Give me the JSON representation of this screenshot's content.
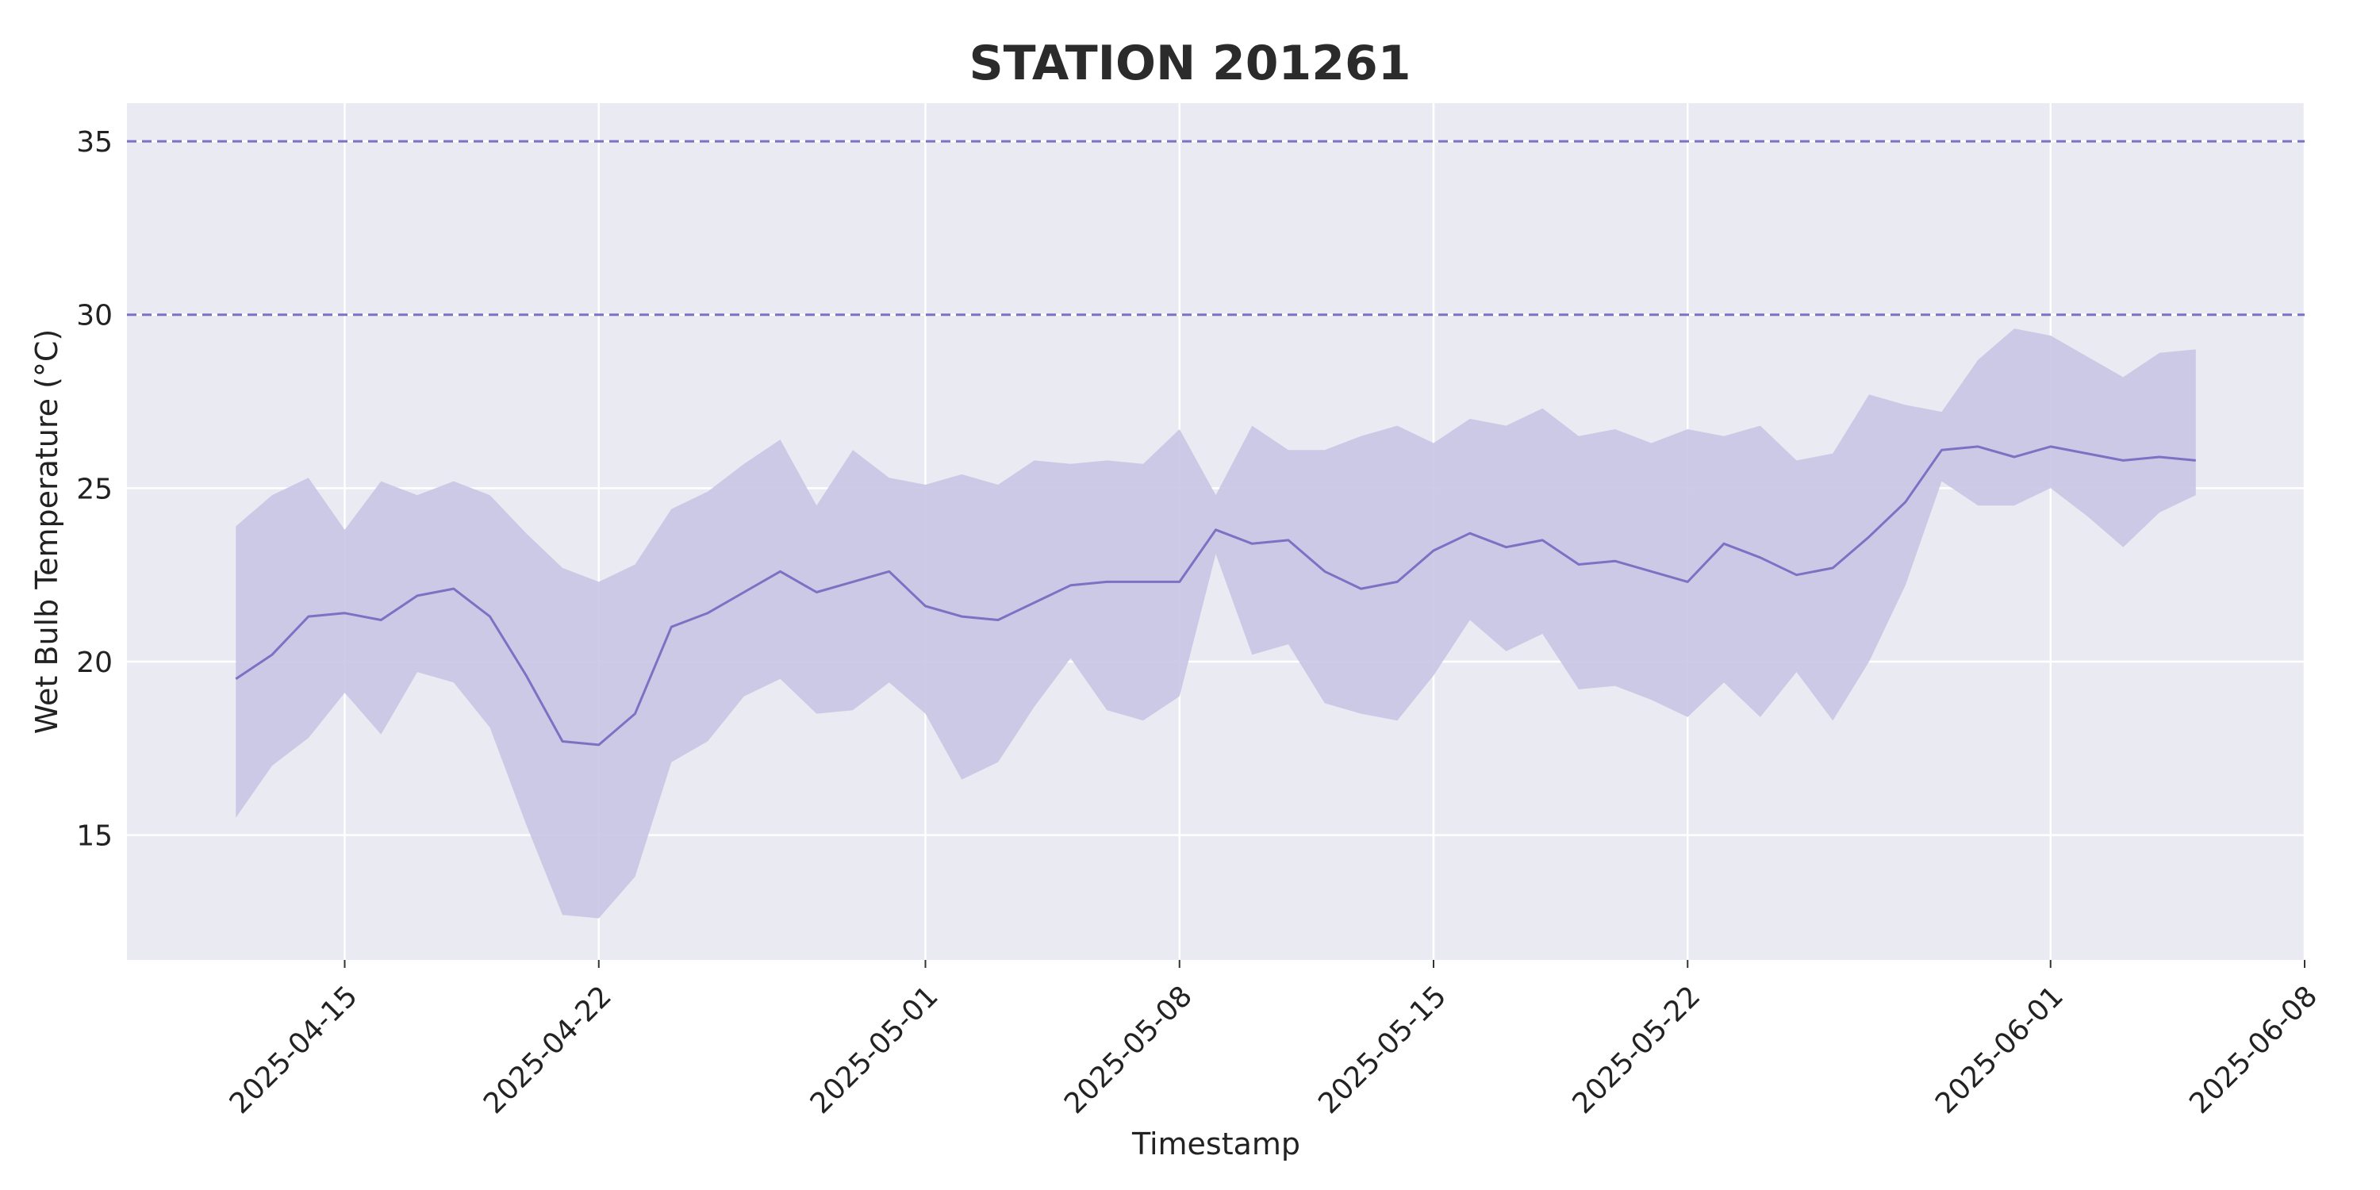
{
  "chart_data": {
    "type": "line",
    "title": "STATION 201261",
    "xlabel": "Timestamp",
    "ylabel": "Wet Bulb Temperature (°C)",
    "xlim": [
      "2025-04-09",
      "2025-06-08"
    ],
    "ylim": [
      11.4,
      36.1
    ],
    "x_ticks": [
      "2025-04-15",
      "2025-04-22",
      "2025-05-01",
      "2025-05-08",
      "2025-05-15",
      "2025-05-22",
      "2025-06-01",
      "2025-06-08"
    ],
    "y_ticks": [
      15,
      20,
      25,
      30,
      35
    ],
    "reference_lines": [
      {
        "y": 30,
        "style": "dashed"
      },
      {
        "y": 35,
        "style": "dashed"
      }
    ],
    "grid": true,
    "colors": {
      "background": "#eaeaf2",
      "grid": "#ffffff",
      "line": "#7b72c4",
      "band": "#c8c5e4",
      "reference": "#7b72c4"
    },
    "series": [
      {
        "x": [
          "2025-04-12",
          "2025-04-13",
          "2025-04-14",
          "2025-04-15",
          "2025-04-16",
          "2025-04-17",
          "2025-04-18",
          "2025-04-19",
          "2025-04-20",
          "2025-04-21",
          "2025-04-22",
          "2025-04-23",
          "2025-04-24",
          "2025-04-25",
          "2025-04-26",
          "2025-04-27",
          "2025-04-28",
          "2025-04-29",
          "2025-04-30",
          "2025-05-01",
          "2025-05-02",
          "2025-05-03",
          "2025-05-04",
          "2025-05-05",
          "2025-05-06",
          "2025-05-07",
          "2025-05-08",
          "2025-05-09",
          "2025-05-10",
          "2025-05-11",
          "2025-05-12",
          "2025-05-13",
          "2025-05-14",
          "2025-05-15",
          "2025-05-16",
          "2025-05-17",
          "2025-05-18",
          "2025-05-19",
          "2025-05-20",
          "2025-05-21",
          "2025-05-22",
          "2025-05-23",
          "2025-05-24",
          "2025-05-25",
          "2025-05-26",
          "2025-05-27",
          "2025-05-28",
          "2025-05-29",
          "2025-05-30",
          "2025-05-31",
          "2025-06-01",
          "2025-06-02",
          "2025-06-03",
          "2025-06-04",
          "2025-06-05",
          "2025-06-06"
        ],
        "mean": [
          19.5,
          20.2,
          21.3,
          21.4,
          21.2,
          21.9,
          22.1,
          21.3,
          19.6,
          17.7,
          17.6,
          18.5,
          21.0,
          21.4,
          22.0,
          22.6,
          22.0,
          22.3,
          22.6,
          21.6,
          21.3,
          21.2,
          21.7,
          22.2,
          22.3,
          22.3,
          22.3,
          23.8,
          23.4,
          23.5,
          22.6,
          22.1,
          22.3,
          23.2,
          23.7,
          23.3,
          23.5,
          22.8,
          22.9,
          22.6,
          22.3,
          23.4,
          23.0,
          22.5,
          22.7,
          23.6,
          24.6,
          26.1,
          26.2,
          25.9,
          26.2,
          26.0,
          25.8,
          25.9,
          25.8,
          null
        ],
        "upper": [
          23.9,
          24.8,
          25.3,
          23.8,
          25.2,
          24.8,
          25.2,
          24.8,
          23.7,
          22.7,
          22.3,
          22.8,
          24.4,
          24.9,
          25.7,
          26.4,
          24.5,
          26.1,
          25.3,
          25.1,
          25.4,
          25.1,
          25.8,
          25.7,
          25.8,
          25.7,
          26.7,
          24.8,
          26.8,
          26.1,
          26.1,
          26.5,
          26.8,
          26.3,
          27.0,
          26.8,
          27.3,
          26.5,
          26.7,
          26.3,
          26.7,
          26.5,
          26.8,
          25.8,
          26.0,
          27.7,
          27.4,
          27.2,
          28.7,
          29.6,
          29.4,
          28.8,
          28.2,
          28.9,
          29.0,
          null
        ],
        "lower": [
          15.5,
          17.0,
          17.8,
          19.1,
          17.9,
          19.7,
          19.4,
          18.1,
          15.3,
          12.7,
          12.6,
          13.8,
          17.1,
          17.7,
          19.0,
          19.5,
          18.5,
          18.6,
          19.4,
          18.5,
          16.6,
          17.1,
          18.7,
          20.1,
          18.6,
          18.3,
          19.0,
          23.1,
          20.2,
          20.5,
          18.8,
          18.5,
          18.3,
          19.6,
          21.2,
          20.3,
          20.8,
          19.2,
          19.3,
          18.9,
          18.4,
          19.4,
          18.4,
          19.7,
          18.3,
          20.0,
          22.2,
          25.2,
          24.5,
          24.5,
          25.0,
          24.2,
          23.3,
          24.3,
          24.8,
          null
        ]
      }
    ]
  }
}
